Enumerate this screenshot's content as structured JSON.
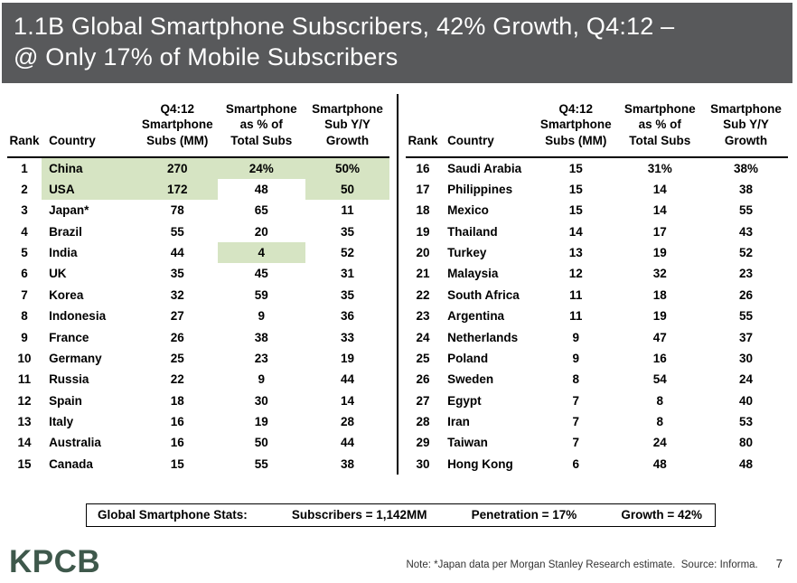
{
  "title": {
    "line1": "1.1B Global Smartphone Subscribers, 42% Growth, Q4:12 –",
    "line2": "@ Only 17% of Mobile Subscribers"
  },
  "table_headers": {
    "rank": "Rank",
    "country": "Country",
    "subs": "Q4:12\nSmartphone\nSubs (MM)",
    "pct": "Smartphone\nas % of\nTotal Subs",
    "growth": "Smartphone\nSub Y/Y\nGrowth"
  },
  "chart_data": {
    "type": "table",
    "title": "1.1B Global Smartphone Subscribers, 42% Growth, Q4:12 – @ Only 17% of Mobile Subscribers",
    "columns": [
      "Rank",
      "Country",
      "Q4:12 Smartphone Subs (MM)",
      "Smartphone as % of Total Subs",
      "Smartphone Sub Y/Y Growth"
    ],
    "rows": [
      {
        "rank": "1",
        "country": "China",
        "subs": "270",
        "pct": "24%",
        "growth": "50%",
        "highlight": [
          "country",
          "subs",
          "pct",
          "growth"
        ]
      },
      {
        "rank": "2",
        "country": "USA",
        "subs": "172",
        "pct": "48",
        "growth": "50",
        "highlight": [
          "country",
          "subs",
          "growth"
        ]
      },
      {
        "rank": "3",
        "country": "Japan*",
        "subs": "78",
        "pct": "65",
        "growth": "11"
      },
      {
        "rank": "4",
        "country": "Brazil",
        "subs": "55",
        "pct": "20",
        "growth": "35"
      },
      {
        "rank": "5",
        "country": "India",
        "subs": "44",
        "pct": "4",
        "growth": "52",
        "highlight": [
          "pct"
        ]
      },
      {
        "rank": "6",
        "country": "UK",
        "subs": "35",
        "pct": "45",
        "growth": "31"
      },
      {
        "rank": "7",
        "country": "Korea",
        "subs": "32",
        "pct": "59",
        "growth": "35"
      },
      {
        "rank": "8",
        "country": "Indonesia",
        "subs": "27",
        "pct": "9",
        "growth": "36"
      },
      {
        "rank": "9",
        "country": "France",
        "subs": "26",
        "pct": "38",
        "growth": "33"
      },
      {
        "rank": "10",
        "country": "Germany",
        "subs": "25",
        "pct": "23",
        "growth": "19"
      },
      {
        "rank": "11",
        "country": "Russia",
        "subs": "22",
        "pct": "9",
        "growth": "44"
      },
      {
        "rank": "12",
        "country": "Spain",
        "subs": "18",
        "pct": "30",
        "growth": "14"
      },
      {
        "rank": "13",
        "country": "Italy",
        "subs": "16",
        "pct": "19",
        "growth": "28"
      },
      {
        "rank": "14",
        "country": "Australia",
        "subs": "16",
        "pct": "50",
        "growth": "44"
      },
      {
        "rank": "15",
        "country": "Canada",
        "subs": "15",
        "pct": "55",
        "growth": "38"
      },
      {
        "rank": "16",
        "country": "Saudi Arabia",
        "subs": "15",
        "pct": "31%",
        "growth": "38%"
      },
      {
        "rank": "17",
        "country": "Philippines",
        "subs": "15",
        "pct": "14",
        "growth": "38"
      },
      {
        "rank": "18",
        "country": "Mexico",
        "subs": "15",
        "pct": "14",
        "growth": "55"
      },
      {
        "rank": "19",
        "country": "Thailand",
        "subs": "14",
        "pct": "17",
        "growth": "43"
      },
      {
        "rank": "20",
        "country": "Turkey",
        "subs": "13",
        "pct": "19",
        "growth": "52"
      },
      {
        "rank": "21",
        "country": "Malaysia",
        "subs": "12",
        "pct": "32",
        "growth": "23"
      },
      {
        "rank": "22",
        "country": "South Africa",
        "subs": "11",
        "pct": "18",
        "growth": "26"
      },
      {
        "rank": "23",
        "country": "Argentina",
        "subs": "11",
        "pct": "19",
        "growth": "55"
      },
      {
        "rank": "24",
        "country": "Netherlands",
        "subs": "9",
        "pct": "47",
        "growth": "37"
      },
      {
        "rank": "25",
        "country": "Poland",
        "subs": "9",
        "pct": "16",
        "growth": "30"
      },
      {
        "rank": "26",
        "country": "Sweden",
        "subs": "8",
        "pct": "54",
        "growth": "24"
      },
      {
        "rank": "27",
        "country": "Egypt",
        "subs": "7",
        "pct": "8",
        "growth": "40"
      },
      {
        "rank": "28",
        "country": "Iran",
        "subs": "7",
        "pct": "8",
        "growth": "53"
      },
      {
        "rank": "29",
        "country": "Taiwan",
        "subs": "7",
        "pct": "24",
        "growth": "80"
      },
      {
        "rank": "30",
        "country": "Hong Kong",
        "subs": "6",
        "pct": "48",
        "growth": "48"
      }
    ]
  },
  "stats_bar": {
    "label": "Global Smartphone Stats:",
    "items": [
      "Subscribers = 1,142MM",
      "Penetration = 17%",
      "Growth = 42%"
    ]
  },
  "footer": {
    "logo_text": "KPCB",
    "note": "Note: *Japan data per Morgan Stanley Research estimate.  Source: Informa.",
    "page": "7"
  },
  "colors": {
    "header_bg": "#58595b",
    "highlight": "#d6e4c3",
    "logo": "#3e584b"
  }
}
